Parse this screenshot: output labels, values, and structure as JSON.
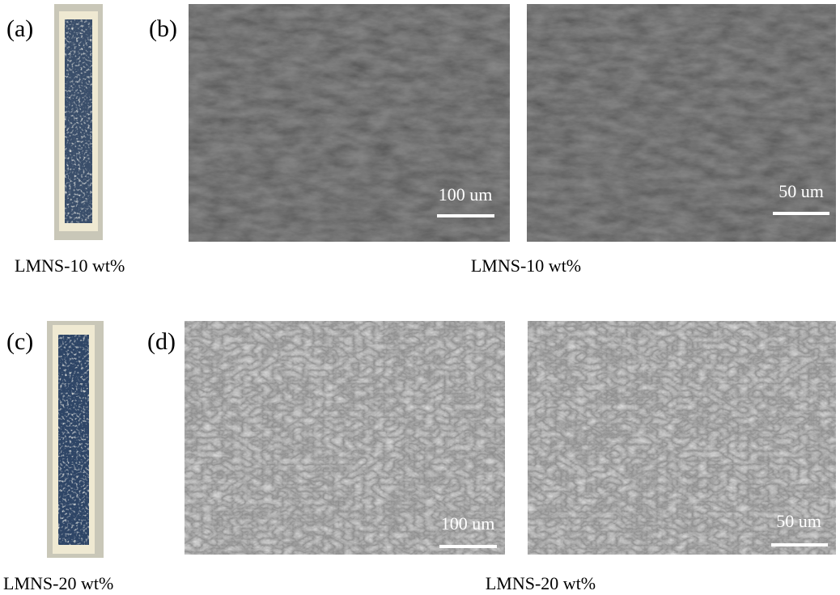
{
  "panels": [
    {
      "label": "(a)",
      "caption": "LMNS-10 wt%"
    },
    {
      "label": "(b)",
      "caption": "LMNS-10 wt%",
      "scale_bars": [
        "100 um",
        "50 um"
      ]
    },
    {
      "label": "(c)",
      "caption": "LMNS-20 wt%"
    },
    {
      "label": "(d)",
      "caption": "LMNS-20 wt%",
      "scale_bars": [
        "100 um",
        "50 um"
      ]
    }
  ]
}
